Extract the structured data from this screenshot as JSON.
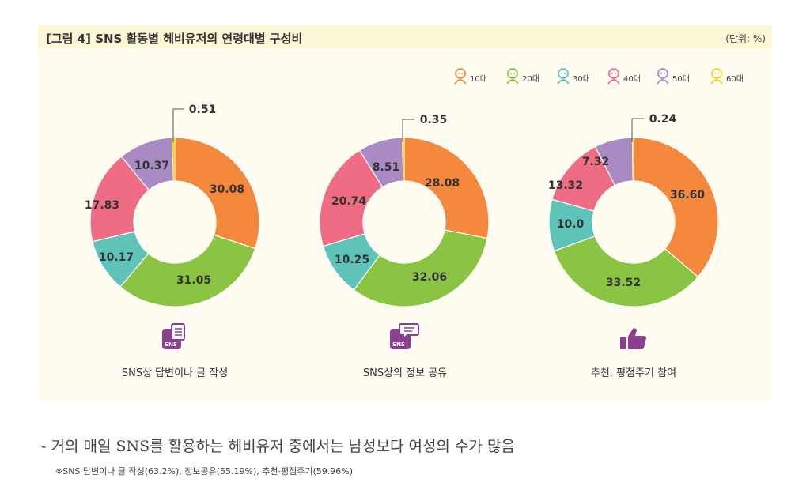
{
  "figure": {
    "title": "[그림 4]  SNS 활동별 헤비유저의 연령대별 구성비",
    "unit": "(단위: %)"
  },
  "colors": {
    "10대": "#f4883c",
    "20대": "#8bc442",
    "30대": "#5ec3b8",
    "40대": "#ef6d84",
    "50대": "#a98ac2",
    "60대": "#f5d31b"
  },
  "chart_data": {
    "type": "pie",
    "legend": [
      "10대",
      "20대",
      "30대",
      "40대",
      "50대",
      "60대"
    ],
    "legend_position": "top-right",
    "charts": [
      {
        "caption": "SNS상 답변이나 글 작성",
        "icon": "sns-document-icon",
        "values": [
          30.08,
          31.05,
          10.17,
          17.83,
          10.37,
          0.51
        ],
        "labels": [
          "30.08",
          "31.05",
          "10.17",
          "17.83",
          "10.37",
          "0.51"
        ]
      },
      {
        "caption": "SNS상의 정보 공유",
        "icon": "sns-chat-icon",
        "values": [
          28.08,
          32.06,
          10.25,
          20.74,
          8.51,
          0.35
        ],
        "labels": [
          "28.08",
          "32.06",
          "10.25",
          "20.74",
          "8.51",
          "0.35"
        ]
      },
      {
        "caption": "추천, 평점주기 참여",
        "icon": "thumbs-up-icon",
        "values": [
          36.6,
          33.52,
          10.0,
          13.32,
          7.32,
          0.24
        ],
        "labels": [
          "36.60",
          "33.52",
          "10.0",
          "13.32",
          "7.32",
          "0.24"
        ]
      }
    ]
  },
  "notes": {
    "main": "- 거의 매일 SNS를 활용하는 헤비유저 중에서는 남성보다 여성의 수가 많음",
    "sub": "※SNS 답변이나 글 작성(63.2%), 정보공유(55.19%), 추천·평점주기(59.96%)"
  }
}
